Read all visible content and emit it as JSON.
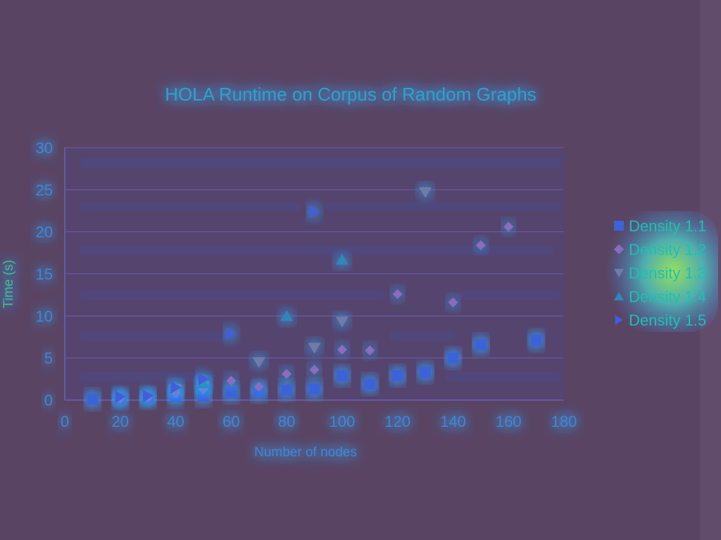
{
  "chart_data": {
    "type": "scatter",
    "title": "HOLA Runtime on Corpus of Random Graphs",
    "xlabel": "Number of nodes",
    "ylabel": "Time (s)",
    "xlim": [
      0,
      180
    ],
    "ylim": [
      0,
      30
    ],
    "xticks": [
      0,
      20,
      40,
      60,
      80,
      100,
      120,
      140,
      160,
      180
    ],
    "yticks": [
      0,
      5,
      10,
      15,
      20,
      25,
      30
    ],
    "grid": true,
    "legend_position": "right",
    "series": [
      {
        "name": "Density 1.1",
        "marker": "square",
        "color": "#3b63d8",
        "points": [
          [
            10,
            0.1
          ],
          [
            20,
            0.2
          ],
          [
            30,
            0.3
          ],
          [
            40,
            0.4
          ],
          [
            50,
            0.5
          ],
          [
            60,
            0.9
          ],
          [
            70,
            1.0
          ],
          [
            80,
            1.2
          ],
          [
            90,
            1.3
          ],
          [
            100,
            2.9
          ],
          [
            110,
            1.9
          ],
          [
            120,
            2.9
          ],
          [
            130,
            3.3
          ],
          [
            140,
            5.0
          ],
          [
            150,
            6.6
          ],
          [
            170,
            7.1
          ]
        ]
      },
      {
        "name": "Density 1.2",
        "marker": "diamond",
        "color": "#8a6cc0",
        "points": [
          [
            20,
            0.2
          ],
          [
            30,
            0.3
          ],
          [
            40,
            0.8
          ],
          [
            50,
            1.3
          ],
          [
            60,
            2.3
          ],
          [
            70,
            1.6
          ],
          [
            80,
            3.1
          ],
          [
            90,
            3.6
          ],
          [
            100,
            6.0
          ],
          [
            110,
            5.9
          ],
          [
            120,
            12.6
          ],
          [
            140,
            11.6
          ],
          [
            150,
            18.4
          ],
          [
            160,
            20.6
          ]
        ]
      },
      {
        "name": "Density 1.3",
        "marker": "triangle-down",
        "color": "#6f7ca8",
        "points": [
          [
            40,
            1.3
          ],
          [
            50,
            1.6
          ],
          [
            70,
            4.5
          ],
          [
            90,
            6.2
          ],
          [
            100,
            9.3
          ],
          [
            130,
            24.7
          ]
        ]
      },
      {
        "name": "Density 1.4",
        "marker": "triangle-up",
        "color": "#2f88b8",
        "points": [
          [
            50,
            2.0
          ],
          [
            80,
            10.0
          ],
          [
            100,
            16.7
          ]
        ]
      },
      {
        "name": "Density 1.5",
        "marker": "triangle-right",
        "color": "#3f5fd8",
        "points": [
          [
            20,
            0.4
          ],
          [
            30,
            0.5
          ],
          [
            40,
            1.5
          ],
          [
            50,
            2.5
          ],
          [
            60,
            7.9
          ],
          [
            90,
            22.4
          ]
        ]
      }
    ]
  }
}
